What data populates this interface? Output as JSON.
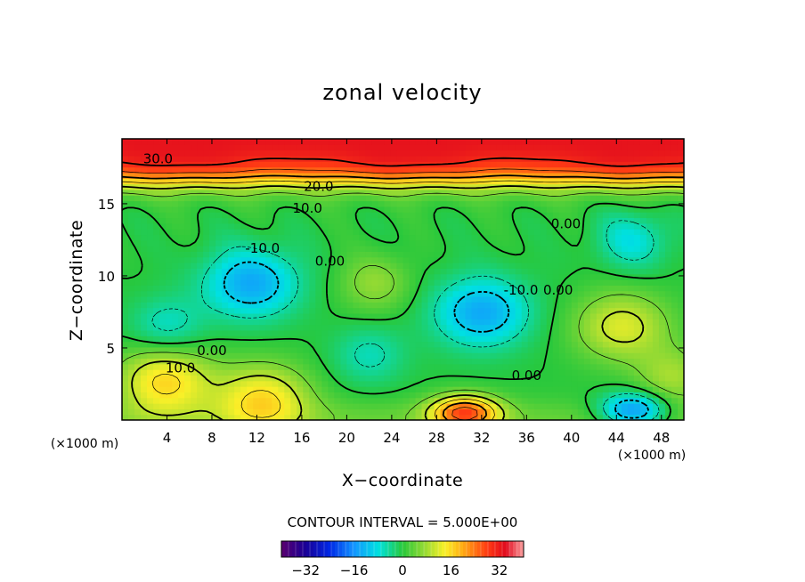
{
  "chart_data": {
    "type": "heatmap",
    "title": "zonal velocity",
    "xlabel": "X−coordinate",
    "ylabel": "Z−coordinate",
    "x_unit_label": "(×1000 m)",
    "y_unit_label": "(×1000 m)",
    "xlim": [
      0,
      50
    ],
    "ylim": [
      0,
      19.5
    ],
    "x_ticks": [
      4,
      8,
      12,
      16,
      20,
      24,
      28,
      32,
      36,
      40,
      44,
      48
    ],
    "y_ticks": [
      5,
      10,
      15
    ],
    "contour_interval_text": "CONTOUR INTERVAL = 5.000E+00",
    "contour_labels": [
      {
        "text": "30.0",
        "x": 3.2,
        "z": 18.1
      },
      {
        "text": "20.0",
        "x": 17.5,
        "z": 16.2
      },
      {
        "text": "10.0",
        "x": 16.5,
        "z": 14.7
      },
      {
        "text": "0.00",
        "x": 39.5,
        "z": 13.6
      },
      {
        "text": "-10.0",
        "x": 12.5,
        "z": 11.9
      },
      {
        "text": "0.00",
        "x": 18.5,
        "z": 11.0
      },
      {
        "text": "-10.0",
        "x": 35.5,
        "z": 9.0
      },
      {
        "text": "0.00",
        "x": 38.8,
        "z": 9.0
      },
      {
        "text": "0.00",
        "x": 8.0,
        "z": 4.8
      },
      {
        "text": "10.0",
        "x": 5.2,
        "z": 3.6
      },
      {
        "text": "0.00",
        "x": 36.0,
        "z": 3.1
      }
    ],
    "features": [
      {
        "kind": "jet",
        "x": 25,
        "z": 18.5,
        "value": 33
      },
      {
        "kind": "min",
        "x": 11.5,
        "z": 9.5,
        "value": -14
      },
      {
        "kind": "min",
        "x": 32,
        "z": 7.5,
        "value": -14
      },
      {
        "kind": "min",
        "x": 4,
        "z": 6.5,
        "value": -7
      },
      {
        "kind": "min",
        "x": 45.5,
        "z": 12.5,
        "value": -8
      },
      {
        "kind": "min",
        "x": 45.5,
        "z": 0.7,
        "value": -18
      },
      {
        "kind": "min",
        "x": 22,
        "z": 4.5,
        "value": -6
      },
      {
        "kind": "max",
        "x": 30.5,
        "z": 0.5,
        "value": 25
      },
      {
        "kind": "max",
        "x": 44.5,
        "z": 6.5,
        "value": 12
      },
      {
        "kind": "max",
        "x": 3.8,
        "z": 2.7,
        "value": 16
      },
      {
        "kind": "max",
        "x": 12.5,
        "z": 1.5,
        "value": 15
      },
      {
        "kind": "max",
        "x": 22.5,
        "z": 9.5,
        "value": 7
      },
      {
        "kind": "max",
        "x": 49,
        "z": 3,
        "value": 8
      }
    ],
    "colorbar": {
      "range": [
        -40,
        40
      ],
      "ticks": [
        -32,
        -16,
        0,
        16,
        32
      ]
    }
  }
}
